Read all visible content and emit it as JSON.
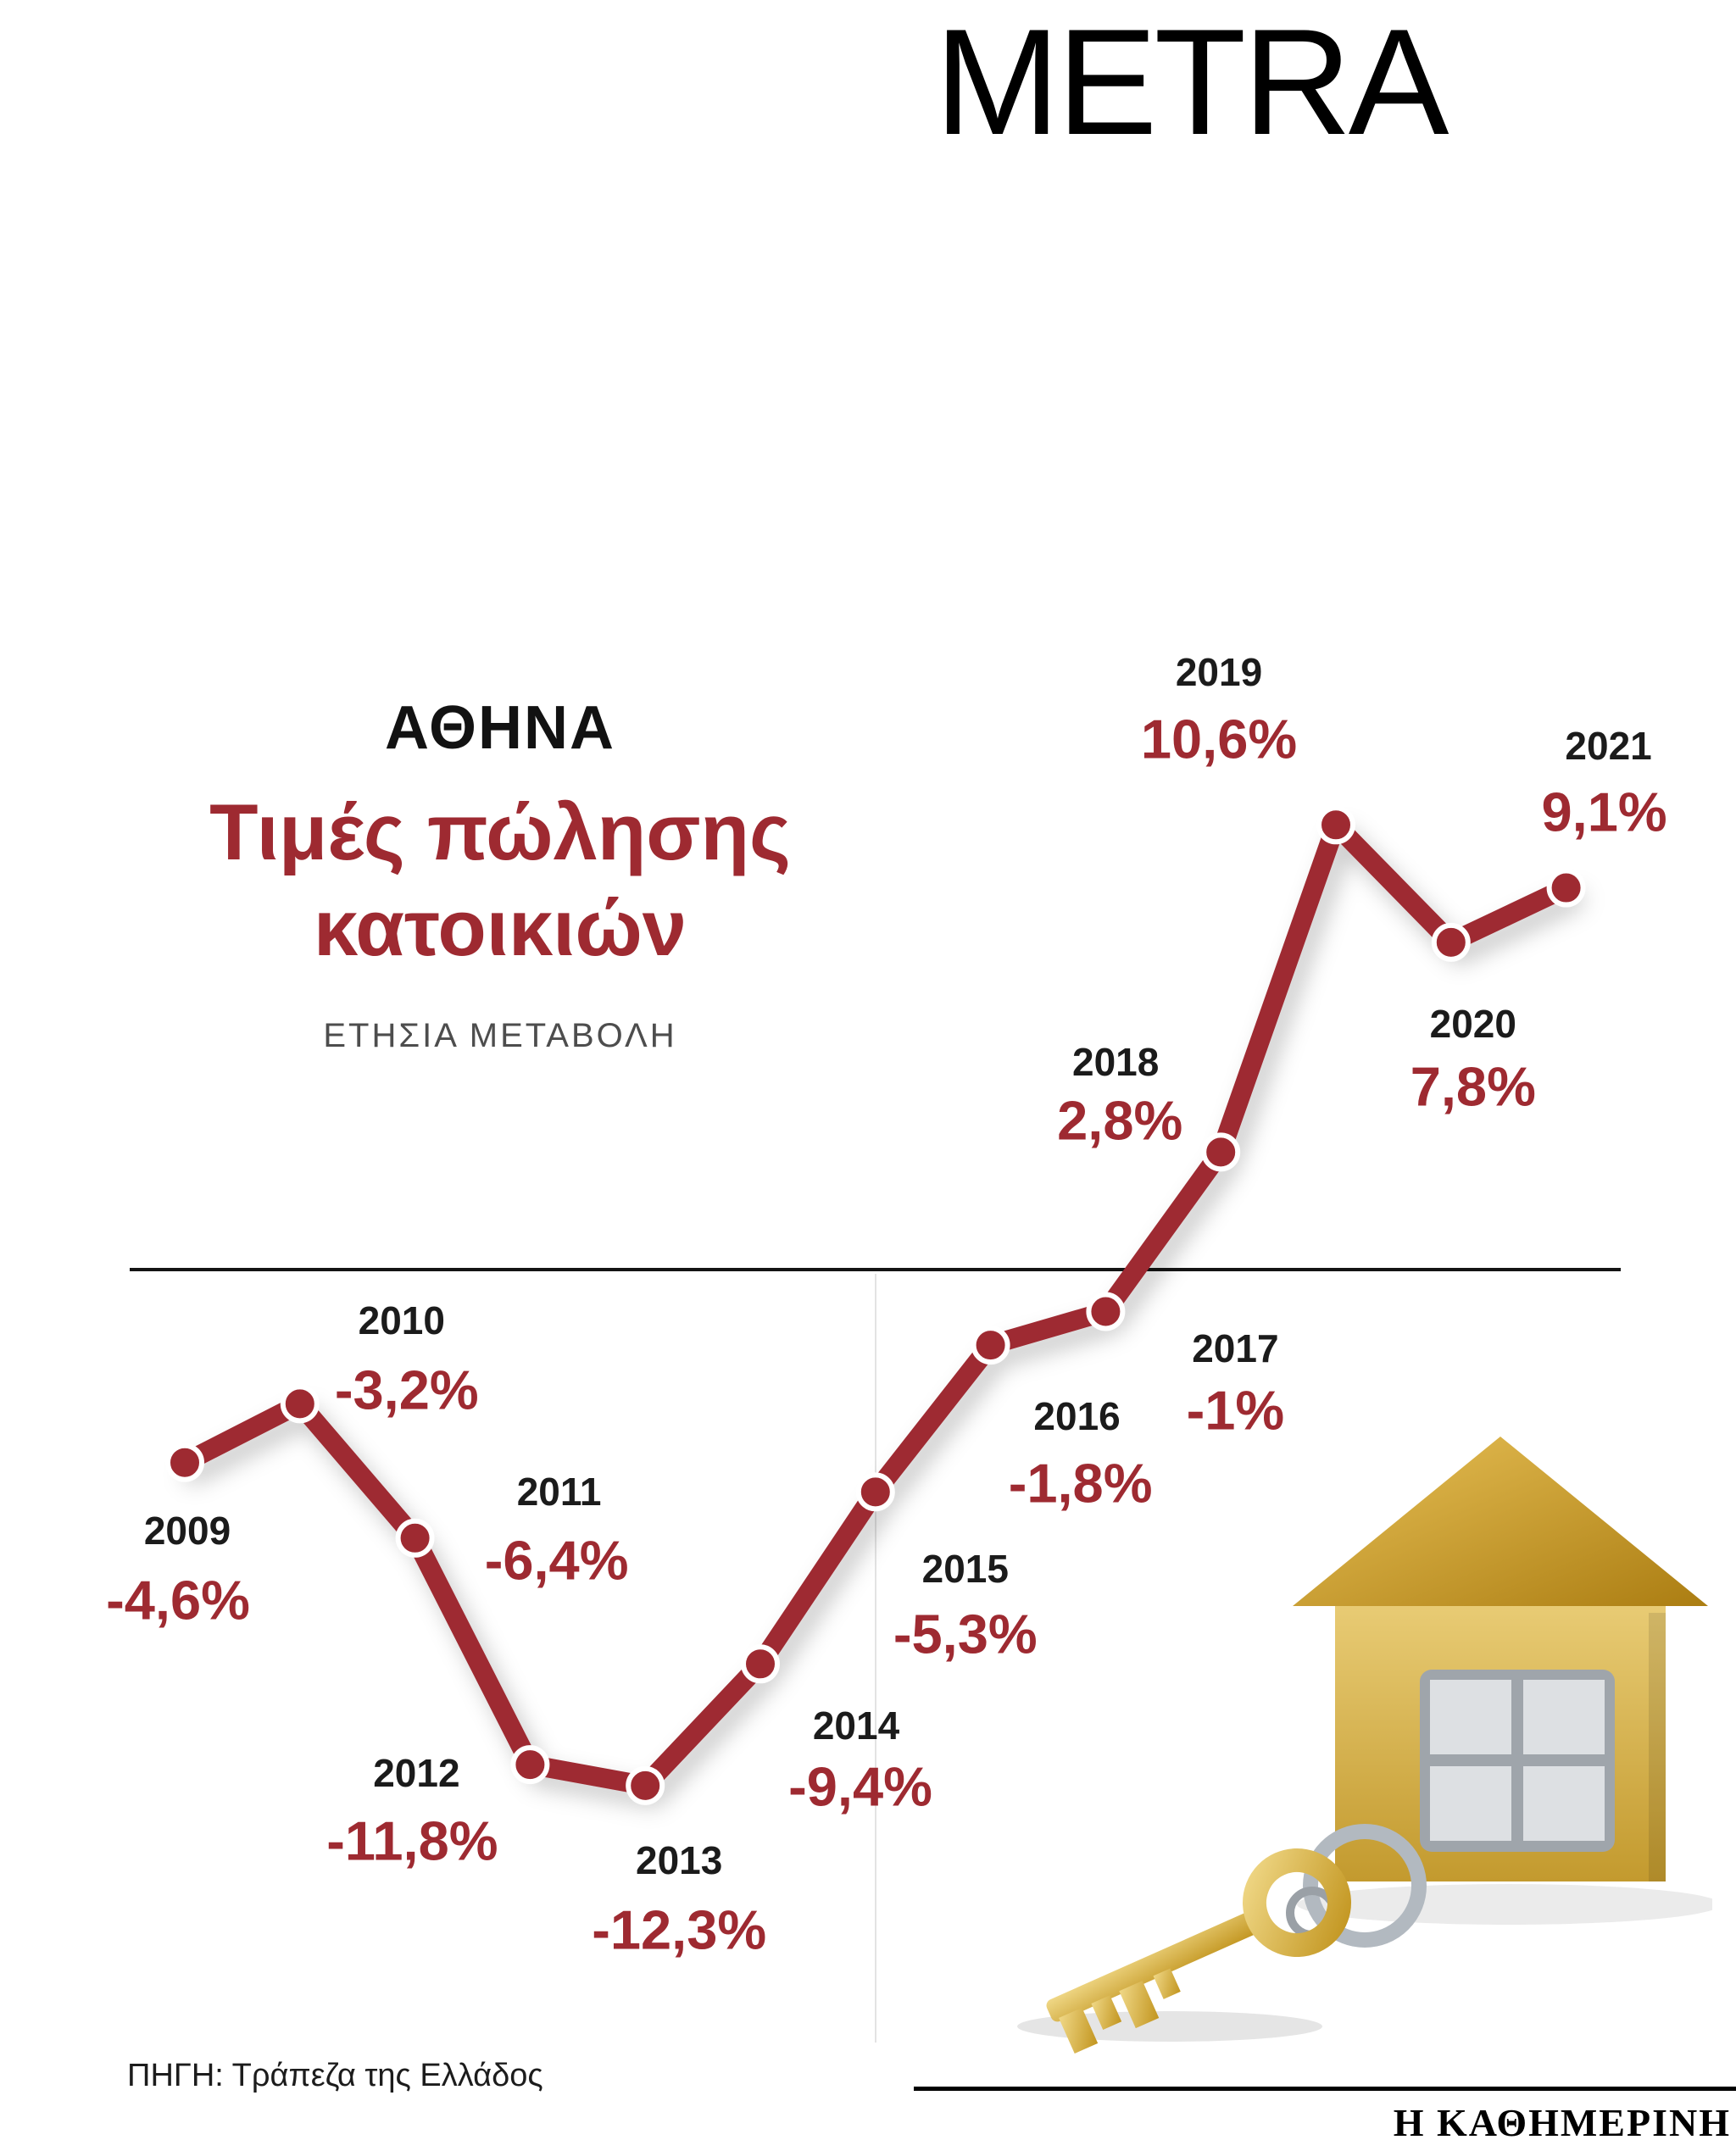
{
  "page": {
    "masthead": "METRA",
    "source": "ΠΗΓΗ: Τράπεζα της Ελλάδος",
    "publisher": "Η ΚΑΘΗΜΕΡΙΝΗ",
    "illustration": "gold-house-keychain-with-key"
  },
  "chart_header": {
    "region": "ΑΘΗΝΑ",
    "title_lines": [
      "Τιμές πώλησης",
      "κατοικιών"
    ],
    "subtitle": "ΕΤΗΣΙΑ ΜΕΤΑΒΟΛΗ"
  },
  "colors": {
    "line": "#9e2a31",
    "value_text": "#9e2a31",
    "year_text": "#1b1b1b",
    "axis": "#141414",
    "gold": "#d3a43a"
  },
  "chart_data": {
    "type": "line",
    "title": "ΑΘΗΝΑ — Τιμές πώλησης κατοικιών",
    "subtitle": "ΕΤΗΣΙΑ ΜΕΤΑΒΟΛΗ",
    "xlabel": "",
    "ylabel": "Ετήσια μεταβολή (%)",
    "unit": "%",
    "categories": [
      "2009",
      "2010",
      "2011",
      "2012",
      "2013",
      "2014",
      "2015",
      "2016",
      "2017",
      "2018",
      "2019",
      "2020",
      "2021"
    ],
    "values": [
      -4.6,
      -3.2,
      -6.4,
      -11.8,
      -12.3,
      -9.4,
      -5.3,
      -1.8,
      -1,
      2.8,
      10.6,
      7.8,
      9.1
    ],
    "value_labels": [
      "-4,6%",
      "-3,2%",
      "-6,4%",
      "-11,8%",
      "-12,3%",
      "-9,4%",
      "-5,3%",
      "-1,8%",
      "-1%",
      "2,8%",
      "10,6%",
      "7,8%",
      "9,1%"
    ],
    "ylim": [
      -14,
      12
    ],
    "zero_axis": true,
    "grid": false,
    "legend": "none",
    "line_color": "#9e2a31",
    "marker": "filled-circle-white-ring"
  }
}
